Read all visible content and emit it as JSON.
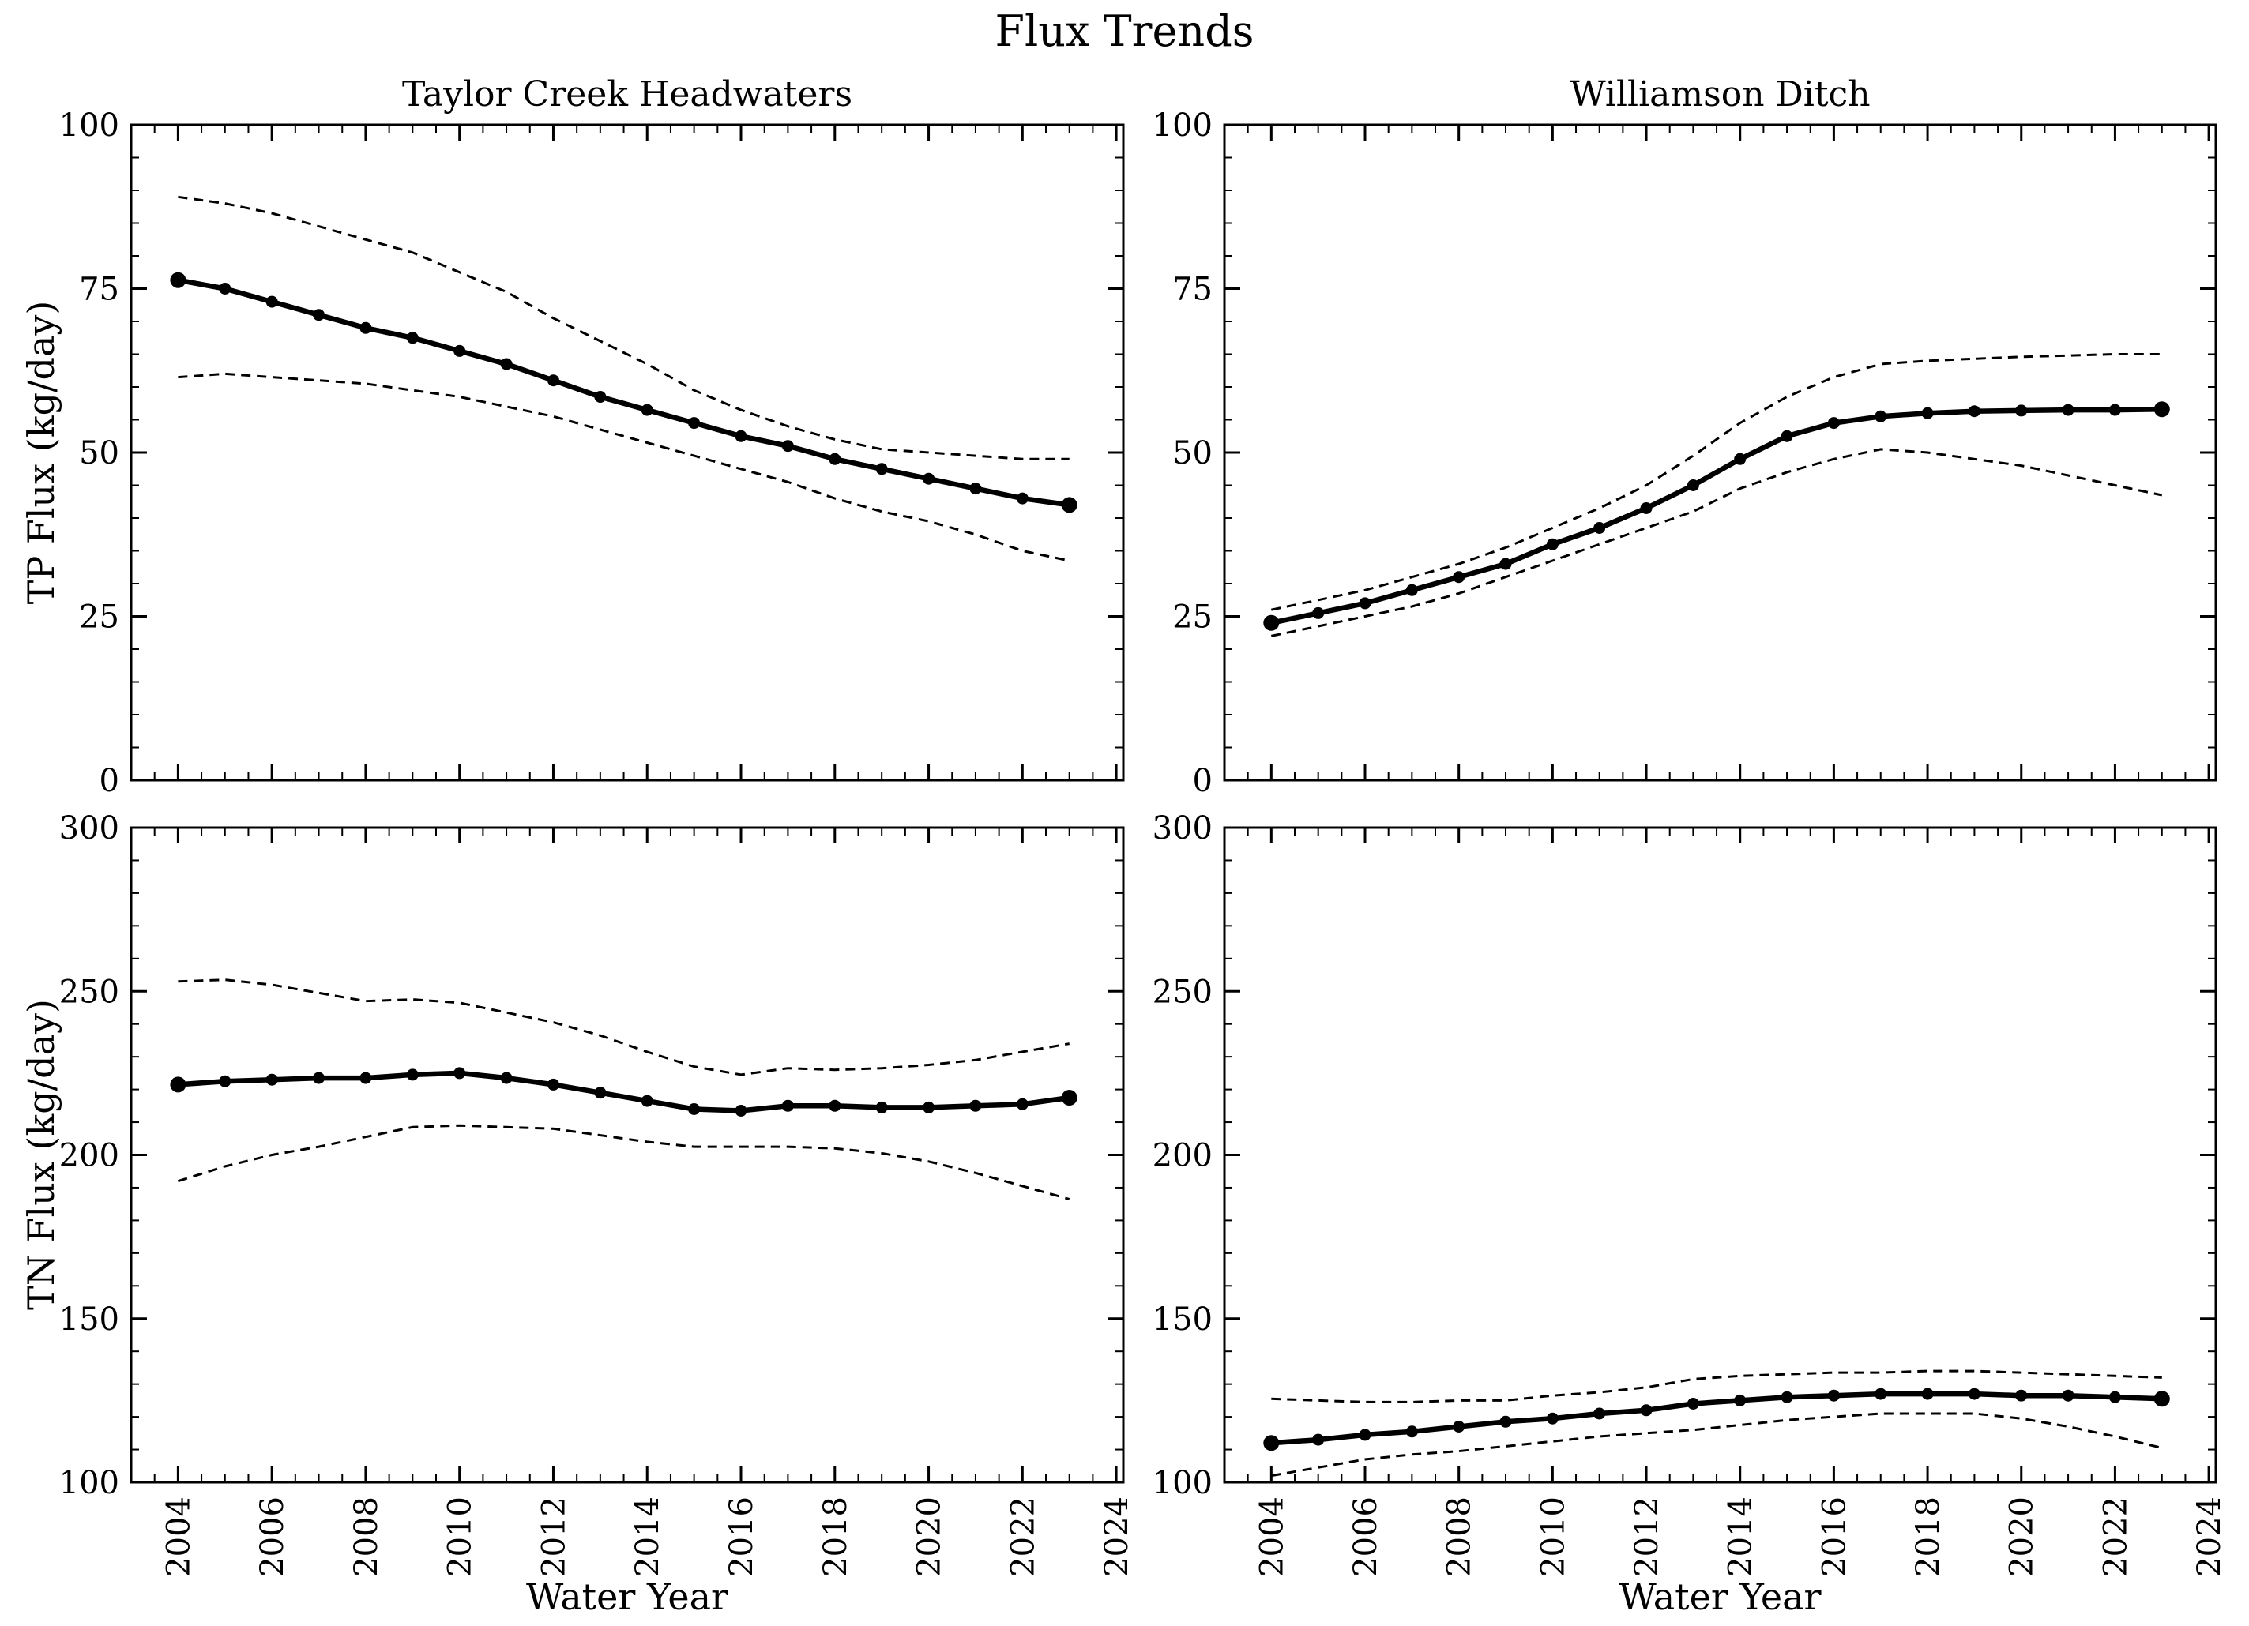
{
  "title": "Flux Trends",
  "colors": {
    "foreground": "#000000",
    "background": "#ffffff"
  },
  "chart_data": [
    {
      "type": "line",
      "title": "Taylor Creek Headwaters",
      "ylabel": "TP Flux (kg/day)",
      "x": [
        2004,
        2005,
        2006,
        2007,
        2008,
        2009,
        2010,
        2011,
        2012,
        2013,
        2014,
        2015,
        2016,
        2017,
        2018,
        2019,
        2020,
        2021,
        2022,
        2023
      ],
      "series": [
        {
          "name": "center estimate",
          "style": "solid-markers",
          "values": [
            76.3,
            75,
            73,
            71,
            69,
            67.5,
            65.5,
            63.5,
            61,
            58.5,
            56.5,
            54.5,
            52.5,
            51,
            49,
            47.5,
            46,
            44.5,
            43,
            42
          ]
        },
        {
          "name": "upper dashed band",
          "style": "dashed",
          "values": [
            89,
            88,
            86.5,
            84.5,
            82.5,
            80.5,
            77.5,
            74.5,
            70.5,
            67,
            63.5,
            59.5,
            56.5,
            54,
            52,
            50.5,
            50,
            49.5,
            49,
            49
          ]
        },
        {
          "name": "lower dashed band",
          "style": "dashed",
          "values": [
            61.5,
            62,
            61.5,
            61,
            60.5,
            59.5,
            58.5,
            57,
            55.5,
            53.5,
            51.5,
            49.5,
            47.5,
            45.5,
            43,
            41,
            39.5,
            37.5,
            35,
            33.5
          ]
        }
      ],
      "xlim": [
        2003,
        2024.15
      ],
      "ylim": [
        0,
        100
      ],
      "xticks": [
        2004,
        2006,
        2008,
        2010,
        2012,
        2014,
        2016,
        2018,
        2020,
        2022,
        2024
      ],
      "yticks": [
        0,
        25,
        50,
        75,
        100
      ],
      "x_minor_step": 0.5,
      "y_minor_step": 5,
      "grid": false,
      "legend": "none",
      "show_x_tick_labels": false
    },
    {
      "type": "line",
      "title": "Williamson Ditch",
      "x": [
        2004,
        2005,
        2006,
        2007,
        2008,
        2009,
        2010,
        2011,
        2012,
        2013,
        2014,
        2015,
        2016,
        2017,
        2018,
        2019,
        2020,
        2021,
        2022,
        2023
      ],
      "series": [
        {
          "name": "center estimate",
          "style": "solid-markers",
          "values": [
            24,
            25.5,
            27,
            29,
            31,
            33,
            36,
            38.5,
            41.5,
            45,
            49,
            52.5,
            54.5,
            55.5,
            56,
            56.3,
            56.4,
            56.5,
            56.5,
            56.6
          ]
        },
        {
          "name": "upper dashed band",
          "style": "dashed",
          "values": [
            26,
            27.5,
            29,
            31,
            33,
            35.5,
            38.5,
            41.5,
            45,
            49.5,
            54.5,
            58.5,
            61.5,
            63.5,
            64,
            64.3,
            64.6,
            64.8,
            65,
            65
          ]
        },
        {
          "name": "lower dashed band",
          "style": "dashed",
          "values": [
            22,
            23.5,
            25,
            26.5,
            28.5,
            31,
            33.5,
            36,
            38.5,
            41,
            44.5,
            47,
            49,
            50.5,
            50,
            49,
            48,
            46.5,
            45,
            43.5
          ]
        }
      ],
      "xlim": [
        2003,
        2024.15
      ],
      "ylim": [
        0,
        100
      ],
      "xticks": [
        2004,
        2006,
        2008,
        2010,
        2012,
        2014,
        2016,
        2018,
        2020,
        2022,
        2024
      ],
      "yticks": [
        0,
        25,
        50,
        75,
        100
      ],
      "x_minor_step": 0.5,
      "y_minor_step": 5,
      "grid": false,
      "legend": "none",
      "show_x_tick_labels": false
    },
    {
      "type": "line",
      "ylabel": "TN Flux (kg/day)",
      "xlabel": "Water Year",
      "x": [
        2004,
        2005,
        2006,
        2007,
        2008,
        2009,
        2010,
        2011,
        2012,
        2013,
        2014,
        2015,
        2016,
        2017,
        2018,
        2019,
        2020,
        2021,
        2022,
        2023
      ],
      "series": [
        {
          "name": "center estimate",
          "style": "solid-markers",
          "values": [
            221.5,
            222.5,
            223,
            223.5,
            223.5,
            224.5,
            225,
            223.5,
            221.5,
            219,
            216.5,
            214,
            213.5,
            215,
            215,
            214.5,
            214.5,
            215,
            215.5,
            217.5
          ]
        },
        {
          "name": "upper dashed band",
          "style": "dashed",
          "values": [
            253,
            253.5,
            252,
            249.5,
            247,
            247.5,
            246.5,
            243.5,
            240.5,
            236.5,
            231.5,
            227,
            224.5,
            226.5,
            226,
            226.5,
            227.5,
            229,
            231.5,
            234
          ]
        },
        {
          "name": "lower dashed band",
          "style": "dashed",
          "values": [
            192,
            196.5,
            200,
            202.5,
            205.5,
            208.5,
            209,
            208.5,
            208,
            206,
            204,
            202.5,
            202.5,
            202.5,
            202,
            200.5,
            198,
            194.5,
            190.5,
            186.5
          ]
        }
      ],
      "xlim": [
        2003,
        2024.15
      ],
      "ylim": [
        100,
        300
      ],
      "xticks": [
        2004,
        2006,
        2008,
        2010,
        2012,
        2014,
        2016,
        2018,
        2020,
        2022,
        2024
      ],
      "yticks": [
        100,
        150,
        200,
        250,
        300
      ],
      "x_minor_step": 0.5,
      "y_minor_step": 10,
      "grid": false,
      "legend": "none",
      "show_x_tick_labels": true
    },
    {
      "type": "line",
      "xlabel": "Water Year",
      "x": [
        2004,
        2005,
        2006,
        2007,
        2008,
        2009,
        2010,
        2011,
        2012,
        2013,
        2014,
        2015,
        2016,
        2017,
        2018,
        2019,
        2020,
        2021,
        2022,
        2023
      ],
      "series": [
        {
          "name": "center estimate",
          "style": "solid-markers",
          "values": [
            112,
            113,
            114.5,
            115.5,
            117,
            118.5,
            119.5,
            121,
            122,
            124,
            125,
            126,
            126.5,
            127,
            127,
            127,
            126.5,
            126.5,
            126,
            125.5
          ]
        },
        {
          "name": "upper dashed band",
          "style": "dashed",
          "values": [
            125.5,
            125,
            124.5,
            124.5,
            125,
            125,
            126.5,
            127.5,
            129,
            131.5,
            132.5,
            133,
            133.5,
            133.5,
            134,
            134,
            133.5,
            133,
            132.5,
            132
          ]
        },
        {
          "name": "lower dashed band",
          "style": "dashed",
          "values": [
            102,
            104.5,
            107,
            108.5,
            109.5,
            111,
            112.5,
            114,
            115,
            116,
            117.5,
            119,
            120,
            121,
            121,
            121,
            119.5,
            117,
            114,
            110.5
          ]
        }
      ],
      "xlim": [
        2003,
        2024.15
      ],
      "ylim": [
        100,
        300
      ],
      "xticks": [
        2004,
        2006,
        2008,
        2010,
        2012,
        2014,
        2016,
        2018,
        2020,
        2022,
        2024
      ],
      "yticks": [
        100,
        150,
        200,
        250,
        300
      ],
      "x_minor_step": 0.5,
      "y_minor_step": 10,
      "grid": false,
      "legend": "none",
      "show_x_tick_labels": true
    }
  ]
}
